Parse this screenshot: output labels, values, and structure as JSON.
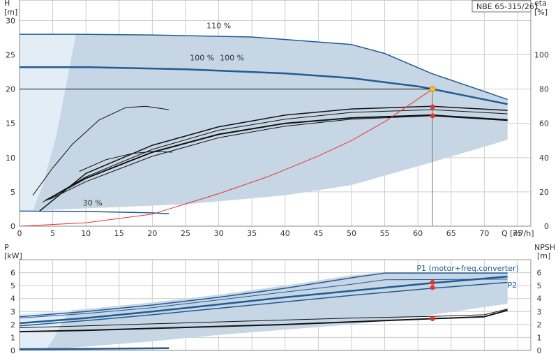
{
  "product_label": "NBE 65-315/261",
  "colors": {
    "envelope": "#c7d6e4",
    "envelope_light": "#e3edf6",
    "curve_blue": "#1f5b94",
    "curve_dark": "#111111",
    "efficiency": "#e8322e",
    "duty_point_head": "#f2c431",
    "marker": "#e8322e",
    "grid": "#cccccc"
  },
  "chart_data": [
    {
      "id": "head",
      "type": "line",
      "xlabel": "Q [m³/h]",
      "ylabel": "H",
      "ylabel_unit": "[m]",
      "y2label": "eta",
      "y2label_unit": "[%]",
      "xlim": [
        0,
        77
      ],
      "ylim": [
        0,
        33
      ],
      "y2lim": [
        0,
        132
      ],
      "x_ticks": [
        0,
        5,
        10,
        15,
        20,
        25,
        30,
        35,
        40,
        45,
        50,
        55,
        60,
        65,
        70,
        75
      ],
      "y_ticks": [
        0,
        5,
        10,
        15,
        20,
        25,
        30
      ],
      "y2_ticks": [
        0,
        20,
        40,
        60,
        80,
        100
      ],
      "grid": true,
      "envelope": {
        "upper": [
          [
            0,
            28
          ],
          [
            8,
            28
          ],
          [
            20,
            27.9
          ],
          [
            35,
            27.6
          ],
          [
            50,
            26.5
          ],
          [
            55,
            25.2
          ],
          [
            62,
            22.3
          ],
          [
            73.5,
            18.5
          ]
        ],
        "lower": [
          [
            73.5,
            12.6
          ],
          [
            62,
            9.3
          ],
          [
            50,
            6.0
          ],
          [
            40,
            4.5
          ],
          [
            25,
            3.2
          ],
          [
            0,
            2.2
          ]
        ],
        "light_band": [
          [
            0,
            28
          ],
          [
            8.5,
            28
          ],
          [
            7.5,
            23
          ],
          [
            5.5,
            13
          ],
          [
            3.5,
            6
          ],
          [
            2,
            2.2
          ],
          [
            0,
            2.2
          ]
        ]
      },
      "series": [
        {
          "name": "110 %",
          "color_role": "curve_blue",
          "width": 1.5,
          "points": [
            [
              0,
              28
            ],
            [
              8,
              28
            ],
            [
              20,
              27.9
            ],
            [
              35,
              27.6
            ],
            [
              50,
              26.5
            ],
            [
              55,
              25.2
            ],
            [
              62,
              22.3
            ],
            [
              73.5,
              18.5
            ]
          ]
        },
        {
          "name": "100 %",
          "color_role": "curve_blue",
          "width": 2.5,
          "points": [
            [
              0,
              23.2
            ],
            [
              10,
              23.2
            ],
            [
              25,
              22.9
            ],
            [
              40,
              22.3
            ],
            [
              50,
              21.6
            ],
            [
              60,
              20.4
            ],
            [
              62.2,
              20
            ],
            [
              73.5,
              17.8
            ]
          ]
        },
        {
          "name": "30 %",
          "color_role": "curve_blue",
          "width": 1.5,
          "points": [
            [
              0,
              2.2
            ],
            [
              10,
              2.15
            ],
            [
              20,
              1.95
            ],
            [
              22.5,
              1.8
            ]
          ]
        },
        {
          "color_role": "curve_dark",
          "width": 1,
          "points": [
            [
              2,
              4.5
            ],
            [
              5,
              8.5
            ],
            [
              8,
              12
            ],
            [
              12,
              15.5
            ],
            [
              16,
              17.3
            ],
            [
              19,
              17.5
            ],
            [
              22.5,
              17
            ]
          ]
        },
        {
          "color_role": "curve_dark",
          "width": 1.5,
          "points": [
            [
              3,
              2.2
            ],
            [
              10,
              7.7
            ],
            [
              20,
              11.8
            ],
            [
              30,
              14.5
            ],
            [
              40,
              16.2
            ],
            [
              50,
              17.1
            ],
            [
              62,
              17.5
            ],
            [
              73.5,
              16.9
            ]
          ]
        },
        {
          "color_role": "curve_dark",
          "width": 1,
          "points": [
            [
              3.5,
              3.5
            ],
            [
              10,
              7.2
            ],
            [
              20,
              11.2
            ],
            [
              30,
              14.0
            ],
            [
              40,
              15.6
            ],
            [
              50,
              16.6
            ],
            [
              62,
              17.0
            ],
            [
              73.5,
              16.4
            ]
          ]
        },
        {
          "color_role": "curve_dark",
          "width": 2,
          "points": [
            [
              4,
              3.8
            ],
            [
              10,
              7.0
            ],
            [
              20,
              10.8
            ],
            [
              30,
              13.4
            ],
            [
              40,
              15.0
            ],
            [
              50,
              15.8
            ],
            [
              62,
              16.2
            ],
            [
              73.5,
              15.5
            ]
          ]
        },
        {
          "color_role": "curve_dark",
          "width": 1,
          "points": [
            [
              4.5,
              3.9
            ],
            [
              10,
              6.5
            ],
            [
              20,
              10.2
            ],
            [
              30,
              12.9
            ],
            [
              40,
              14.6
            ],
            [
              50,
              15.6
            ],
            [
              62,
              16.1
            ],
            [
              73.5,
              15.4
            ]
          ]
        },
        {
          "color_role": "curve_dark",
          "width": 1,
          "points": [
            [
              9,
              8
            ],
            [
              13,
              9.7
            ],
            [
              17,
              10.6
            ],
            [
              20,
              10.9
            ],
            [
              23,
              10.8
            ]
          ]
        }
      ],
      "efficiency_curve": [
        [
          0,
          0
        ],
        [
          10,
          2
        ],
        [
          20,
          7
        ],
        [
          30,
          19
        ],
        [
          37.5,
          29
        ],
        [
          45,
          41
        ],
        [
          50,
          50
        ],
        [
          55,
          61
        ],
        [
          62.2,
          80
        ]
      ],
      "duty_point": {
        "q": 62.2,
        "h": 20
      },
      "markers_h": [
        17.4,
        16.1
      ],
      "annotations": [
        {
          "text": "110 %",
          "at": [
            30,
            28.9
          ]
        },
        {
          "text": "100 %",
          "at": [
            27.5,
            24.2
          ]
        },
        {
          "text": "100 %",
          "at": [
            32,
            24.2
          ]
        },
        {
          "text": "30 %",
          "at": [
            11,
            3
          ]
        }
      ]
    },
    {
      "id": "power",
      "type": "line",
      "xlabel": "",
      "ylabel": "P",
      "ylabel_unit": "[kW]",
      "y2label": "NPSH",
      "y2label_unit": "[m]",
      "xlim": [
        0,
        77
      ],
      "ylim": [
        0,
        7
      ],
      "y2lim": [
        0,
        7
      ],
      "y_ticks": [
        0,
        1,
        2,
        3,
        4,
        5,
        6
      ],
      "y2_ticks": [
        0,
        1,
        2,
        3,
        4,
        5,
        6
      ],
      "grid": true,
      "envelope": {
        "upper": [
          [
            0,
            2.8
          ],
          [
            10,
            3.2
          ],
          [
            20,
            3.7
          ],
          [
            30,
            4.3
          ],
          [
            40,
            5.0
          ],
          [
            50,
            5.8
          ],
          [
            55,
            6.0
          ],
          [
            73.5,
            6.0
          ]
        ],
        "lower": [
          [
            73.5,
            3.6
          ],
          [
            60,
            2.6
          ],
          [
            50,
            2.0
          ],
          [
            40,
            1.6
          ],
          [
            30,
            1.2
          ],
          [
            20,
            0.7
          ],
          [
            10,
            0.3
          ],
          [
            5,
            0.1
          ],
          [
            0,
            0.05
          ]
        ],
        "light_band": [
          [
            0,
            2.8
          ],
          [
            8,
            3.1
          ],
          [
            6.5,
            2.3
          ],
          [
            5,
            0.8
          ],
          [
            4,
            0.1
          ],
          [
            0,
            0.05
          ]
        ]
      },
      "series": [
        {
          "color_role": "curve_blue",
          "width": 1.5,
          "points": [
            [
              0,
              2.6
            ],
            [
              10,
              3.0
            ],
            [
              20,
              3.5
            ],
            [
              30,
              4.1
            ],
            [
              40,
              4.8
            ],
            [
              50,
              5.6
            ],
            [
              55,
              5.97
            ],
            [
              73.5,
              5.97
            ]
          ]
        },
        {
          "color_role": "curve_blue",
          "width": 1,
          "points": [
            [
              0,
              2.5
            ],
            [
              10,
              2.85
            ],
            [
              20,
              3.3
            ],
            [
              30,
              3.9
            ],
            [
              40,
              4.5
            ],
            [
              50,
              5.1
            ],
            [
              55,
              5.45
            ],
            [
              73.5,
              5.5
            ]
          ]
        },
        {
          "name": "P1 (motor+freq.converter)",
          "color_role": "curve_blue",
          "width": 2.5,
          "points": [
            [
              0,
              2.1
            ],
            [
              10,
              2.5
            ],
            [
              20,
              3.0
            ],
            [
              30,
              3.55
            ],
            [
              40,
              4.1
            ],
            [
              50,
              4.6
            ],
            [
              62.2,
              5.2
            ],
            [
              73.5,
              5.7
            ]
          ]
        },
        {
          "name": "P2",
          "color_role": "curve_blue",
          "width": 1.5,
          "points": [
            [
              0,
              1.9
            ],
            [
              10,
              2.3
            ],
            [
              20,
              2.75
            ],
            [
              30,
              3.25
            ],
            [
              40,
              3.75
            ],
            [
              50,
              4.25
            ],
            [
              62.2,
              4.8
            ],
            [
              73.5,
              5.25
            ]
          ]
        },
        {
          "color_role": "curve_blue",
          "width": 2.5,
          "points": [
            [
              0,
              0.1
            ],
            [
              10,
              0.12
            ],
            [
              22.5,
              0.18
            ]
          ]
        },
        {
          "color_role": "curve_dark",
          "width": 1,
          "points": [
            [
              0,
              1.75
            ],
            [
              10,
              1.9
            ],
            [
              20,
              2.05
            ],
            [
              30,
              2.2
            ],
            [
              40,
              2.35
            ],
            [
              50,
              2.5
            ],
            [
              62,
              2.62
            ],
            [
              70,
              2.75
            ],
            [
              73.5,
              3.2
            ]
          ]
        },
        {
          "color_role": "curve_dark",
          "width": 2,
          "points": [
            [
              0,
              1.45
            ],
            [
              10,
              1.55
            ],
            [
              20,
              1.7
            ],
            [
              30,
              1.85
            ],
            [
              40,
              2.0
            ],
            [
              50,
              2.2
            ],
            [
              62.2,
              2.45
            ],
            [
              70,
              2.6
            ],
            [
              73.5,
              3.1
            ]
          ]
        }
      ],
      "markers": [
        {
          "q": 62.2,
          "p": 5.25
        },
        {
          "q": 62.2,
          "p": 4.85
        },
        {
          "q": 62.2,
          "p": 2.45
        }
      ],
      "annotations": [
        {
          "text": "P1 (motor+freq.converter)",
          "at": [
            67.5,
            6.35
          ],
          "anchor": "middle"
        },
        {
          "text": "P2",
          "at": [
            73.5,
            5.05
          ],
          "anchor": "start"
        }
      ]
    }
  ]
}
